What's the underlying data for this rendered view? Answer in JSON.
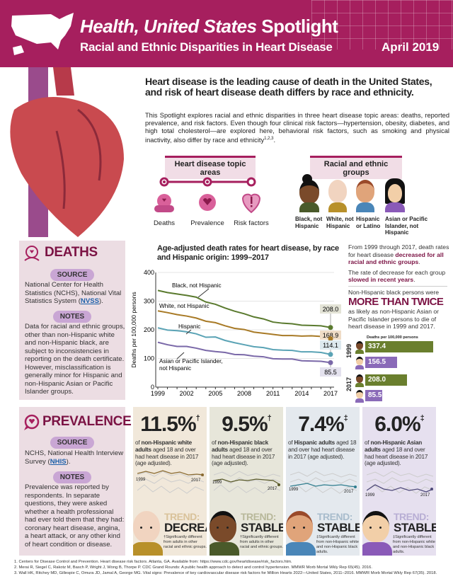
{
  "header": {
    "title_italic": "Health, United States",
    "title_rest": "Spotlight",
    "subtitle": "Racial and Ethnic Disparities in Heart Disease",
    "date": "April 2019",
    "brand_color": "#a61f5e"
  },
  "intro": {
    "lead": "Heart disease is the leading cause of death in the United States, and risk of heart disease death differs by race and ethnicity.",
    "body": "This Spotlight explores racial and ethnic disparities in three heart disease topic areas: deaths, reported prevalence, and risk factors. Even though four clinical risk factors—hypertension, obesity, diabetes, and high total cholesterol—are explored here, behavioral risk factors, such as smoking and physical inactivity, also differ by race and ethnicity",
    "body_sup": "1,2,3"
  },
  "topics": {
    "heading": "Heart disease topic areas",
    "items": [
      {
        "label": "Deaths",
        "icon": "deaths-icon"
      },
      {
        "label": "Prevalence",
        "icon": "speech-heart-icon"
      },
      {
        "label": "Risk factors",
        "icon": "heart-exclamation-icon"
      }
    ]
  },
  "groups": {
    "heading": "Racial and ethnic groups",
    "items": [
      "Black, not Hispanic",
      "White, not Hispanic",
      "Hispanic or Latino",
      "Asian or Pacific Islander, not Hispanic"
    ]
  },
  "deaths": {
    "title": "DEATHS",
    "source_label": "SOURCE",
    "source_pre": "National Center for Health Statistics (NCHS), National Vital Statistics System (",
    "source_link": "NVSS",
    "source_post": ").",
    "notes_label": "NOTES",
    "notes": "Data for racial and ethnic groups, other than non-Hispanic white and non-Hispanic black, are subject to inconsistencies in reporting on the death certificate. However, misclassification is generally minor for Hispanic and non-Hispanic Asian or Pacific Islander groups.",
    "side": {
      "p1_pre": "From 1999 through 2017, death rates for heart disease ",
      "p1_bold": "decreased for all racial and ethnic groups",
      "p1_post": ".",
      "p2_pre": "The rate of decrease for each group ",
      "p2_bold": "slowed in recent years",
      "p2_post": ".",
      "p3": "Non-Hispanic black persons were",
      "big": "MORE THAN TWICE",
      "p4": "as likely as non-Hispanic Asian or Pacific Islander persons to die of heart disease in 1999 and 2017.",
      "bars_label": "Deaths per 100,000 persons",
      "bars": [
        {
          "year": "1999",
          "black": "337.4",
          "asian": "156.5"
        },
        {
          "year": "2017",
          "black": "208.0",
          "asian": "85.5"
        }
      ]
    }
  },
  "chart_data": {
    "type": "line",
    "title": "Age-adjusted death rates for heart disease, by race and Hispanic origin: 1999–2017",
    "xlabel": "",
    "ylabel": "Deaths per 100,000 persons",
    "ylim": [
      0,
      400
    ],
    "yticks": [
      "0",
      "100",
      "200",
      "300",
      "400"
    ],
    "xticks": [
      "1999",
      "2002",
      "2005",
      "2008",
      "2011",
      "2014",
      "2017"
    ],
    "x": [
      1999,
      2000,
      2001,
      2002,
      2003,
      2004,
      2005,
      2006,
      2007,
      2008,
      2009,
      2010,
      2011,
      2012,
      2013,
      2014,
      2015,
      2016,
      2017
    ],
    "series": [
      {
        "name": "Black, not Hispanic",
        "color": "#5a7a2e",
        "end_label": "208.0",
        "values": [
          337.4,
          330,
          325,
          320,
          314,
          297,
          289,
          276,
          265,
          256,
          245,
          238,
          227,
          223,
          221,
          216,
          215,
          214,
          208.0
        ]
      },
      {
        "name": "White, not Hispanic",
        "color": "#a87a26",
        "end_label": "168.9",
        "values": [
          266,
          260,
          253,
          248,
          241,
          230,
          225,
          214,
          205,
          201,
          192,
          188,
          184,
          180,
          180,
          178,
          179,
          177,
          168.9
        ]
      },
      {
        "name": "Hispanic",
        "color": "#5aa3b5",
        "end_label": "114.1",
        "values": [
          207,
          199,
          197,
          193,
          186,
          174,
          175,
          163,
          155,
          148,
          141,
          138,
          131,
          129,
          128,
          123,
          123,
          121,
          114.1
        ]
      },
      {
        "name": "Asian or Pacific Islander, not Hispanic",
        "color": "#7a68a8",
        "end_label": "85.5",
        "values": [
          156.5,
          148,
          142,
          142,
          136,
          128,
          124,
          121,
          114,
          113,
          108,
          106,
          99,
          98,
          98,
          92,
          91,
          90,
          85.5
        ]
      }
    ]
  },
  "prevalence": {
    "title": "PREVALENCE",
    "source_label": "SOURCE",
    "source_pre": "NCHS, National Health Interview Survey (",
    "source_link": "NHIS",
    "source_post": ").",
    "notes_label": "NOTES",
    "notes": "Prevalence was reported by respondents. In separate questions, they were asked whether a health professional had ever told them that they had: coronary heart disease, angina, a heart attack, or any other kind of heart condition or disease.",
    "cards": [
      {
        "value": "11.5%",
        "mark": "†",
        "pre": "of ",
        "bold": "non-Hispanic white adults",
        "post": " aged 18 and over had heart disease in 2017 (age adjusted).",
        "start": "1999",
        "end": "2017",
        "trend_label": "TREND:",
        "trend": "DECREASE",
        "foot": "†Significantly different from adults in other racial and ethnic groups.",
        "bg": "#f1e8da",
        "accent": "#8a6a30"
      },
      {
        "value": "9.5%",
        "mark": "†",
        "pre": "of ",
        "bold": "non-Hispanic black adults",
        "post": " aged 18 and over had heart disease in 2017 (age adjusted).",
        "start": "1999",
        "end": "2017",
        "trend_label": "TREND:",
        "trend": "STABLE",
        "foot": "†Significantly different from adults in other racial and ethnic groups.",
        "bg": "#e7e6da",
        "accent": "#5a5a2a"
      },
      {
        "value": "7.4%",
        "mark": "‡",
        "pre": "of ",
        "bold": "Hispanic adults",
        "post": " aged 18 and over had heart disease in 2017 (age adjusted).",
        "start": "1999",
        "end": "2017",
        "trend_label": "TREND:",
        "trend": "STABLE",
        "foot": "‡Significantly different from non-Hispanic white and non-Hispanic black adults.",
        "bg": "#e4e9ee",
        "accent": "#2f7d8e"
      },
      {
        "value": "6.0%",
        "mark": "‡",
        "pre": "of ",
        "bold": "non-Hispanic Asian adults",
        "post": " aged 18 and over had heart disease in 2017 (age adjusted).",
        "start": "1999",
        "end": "2017",
        "trend_label": "TREND:",
        "trend": "STABLE",
        "foot": "‡Significantly different from non-Hispanic white and non-Hispanic black adults.",
        "bg": "#e6e0ef",
        "accent": "#4f4a7a"
      }
    ]
  },
  "footnotes": [
    "1. Centers for Disease Control and Prevention. Heart disease risk factors. Atlanta, GA. Available from: https://www.cdc.gov/heartdisease/risk_factors.htm.",
    "2. Merai R, Siegel C, Rakotz M, Basch P, Wright J, Wong B, Thorpe P. CDC Grand Rounds: A public health approach to detect and control hypertension. MMWR Morb Mortal Wkly Rep 65(45). 2016.",
    "3. Wall HK, Ritchey MD, Gillespie C, Omura JD, Jamal A, George MG. Vital signs: Prevalence of key cardiovascular disease risk factors for Million Hearts 2022—United States, 2011–2016. MMWR Morb Mortal Wkly Rep 67(35). 2018."
  ]
}
